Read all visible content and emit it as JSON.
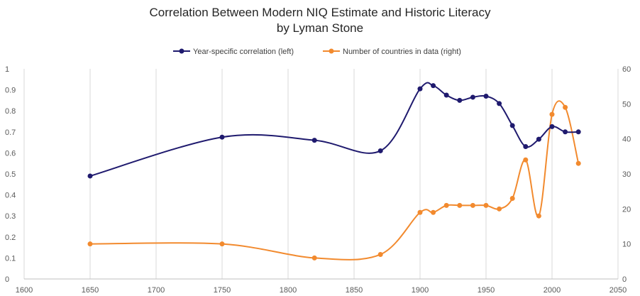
{
  "chart_data": {
    "type": "line",
    "title_lines": [
      "Correlation Between Modern NIQ Estimate and Historic Literacy",
      "by Lyman Stone"
    ],
    "x_ticks": [
      1600,
      1650,
      1700,
      1750,
      1800,
      1850,
      1900,
      1950,
      2000,
      2050
    ],
    "xlim": [
      1600,
      2050
    ],
    "y_left_ticks": [
      0,
      0.1,
      0.2,
      0.3,
      0.4,
      0.5,
      0.6,
      0.7,
      0.8,
      0.9,
      1
    ],
    "ylim_left": [
      0,
      1
    ],
    "y_right_ticks": [
      0,
      10,
      20,
      30,
      40,
      50,
      60
    ],
    "ylim_right": [
      0,
      60
    ],
    "grid": "vertical",
    "legend_position": "top",
    "series": [
      {
        "name": "Year-specific correlation (left)",
        "axis": "left",
        "color": "#1f1a6e",
        "x": [
          1650,
          1750,
          1820,
          1870,
          1900,
          1910,
          1920,
          1930,
          1940,
          1950,
          1960,
          1970,
          1980,
          1990,
          2000,
          2010,
          2020
        ],
        "y": [
          0.49,
          0.675,
          0.66,
          0.61,
          0.905,
          0.92,
          0.875,
          0.85,
          0.865,
          0.87,
          0.835,
          0.73,
          0.63,
          0.665,
          0.725,
          0.7,
          0.7
        ]
      },
      {
        "name": "Number of countries in data (right)",
        "axis": "right",
        "color": "#f28a2e",
        "x": [
          1650,
          1750,
          1820,
          1870,
          1900,
          1910,
          1920,
          1930,
          1940,
          1950,
          1960,
          1970,
          1980,
          1990,
          2000,
          2010,
          2020
        ],
        "y": [
          10,
          10,
          6,
          7,
          19,
          19,
          21,
          21,
          21,
          21,
          20,
          23,
          34,
          18,
          47,
          49,
          33
        ]
      }
    ]
  }
}
